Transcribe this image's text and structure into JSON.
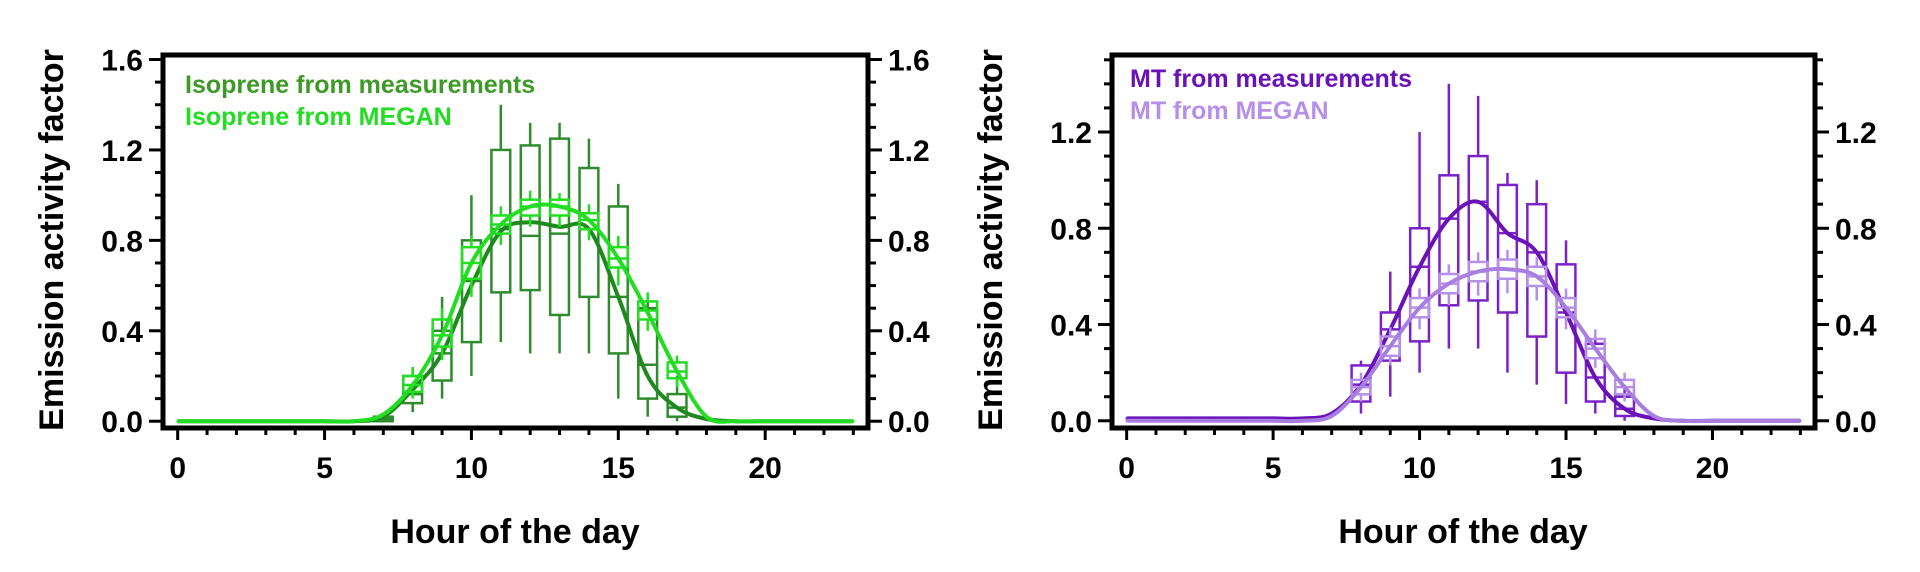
{
  "chart_data": [
    {
      "type": "line",
      "xlabel": "Hour of the day",
      "ylabel": "Emission activity factor",
      "xlim": [
        -0.5,
        23.5
      ],
      "ylim": [
        -0.03,
        1.62
      ],
      "xticks": [
        0,
        5,
        10,
        15,
        20
      ],
      "xtick_labels": [
        "0",
        "5",
        "10",
        "15",
        "20"
      ],
      "yticks": [
        0.0,
        0.4,
        0.8,
        1.2,
        1.6
      ],
      "ytick_labels": [
        "0.0",
        "0.4",
        "0.8",
        "1.2",
        "1.6"
      ],
      "right_axis_mirrored": true,
      "legend_position": "top-left",
      "series": [
        {
          "name": "Isoprene from measurements",
          "color": "#3e9a26",
          "line_color": "#1e8a1e",
          "box_color": "#2e8b2e",
          "x": [
            0,
            1,
            2,
            3,
            4,
            5,
            6,
            7,
            8,
            9,
            10,
            11,
            12,
            13,
            14,
            15,
            16,
            17,
            18,
            19,
            20,
            21,
            22,
            23
          ],
          "values": [
            0.0,
            0.0,
            0.0,
            0.0,
            0.0,
            0.0,
            0.0,
            0.02,
            0.14,
            0.3,
            0.6,
            0.84,
            0.88,
            0.86,
            0.85,
            0.55,
            0.2,
            0.06,
            0.01,
            0.0,
            0.0,
            0.0,
            0.0,
            0.0
          ],
          "boxes": [
            {
              "x": 7,
              "q1": 0.0,
              "med": 0.01,
              "q3": 0.02,
              "lo": 0.0,
              "hi": 0.03
            },
            {
              "x": 8,
              "q1": 0.08,
              "med": 0.12,
              "q3": 0.2,
              "lo": 0.04,
              "hi": 0.24
            },
            {
              "x": 9,
              "q1": 0.18,
              "med": 0.3,
              "q3": 0.4,
              "lo": 0.1,
              "hi": 0.55
            },
            {
              "x": 10,
              "q1": 0.35,
              "med": 0.62,
              "q3": 0.8,
              "lo": 0.2,
              "hi": 1.0
            },
            {
              "x": 11,
              "q1": 0.57,
              "med": 0.85,
              "q3": 1.2,
              "lo": 0.35,
              "hi": 1.4
            },
            {
              "x": 12,
              "q1": 0.58,
              "med": 0.82,
              "q3": 1.22,
              "lo": 0.3,
              "hi": 1.32
            },
            {
              "x": 13,
              "q1": 0.47,
              "med": 0.83,
              "q3": 1.25,
              "lo": 0.3,
              "hi": 1.32
            },
            {
              "x": 14,
              "q1": 0.55,
              "med": 0.85,
              "q3": 1.12,
              "lo": 0.3,
              "hi": 1.25
            },
            {
              "x": 15,
              "q1": 0.3,
              "med": 0.55,
              "q3": 0.95,
              "lo": 0.1,
              "hi": 1.05
            },
            {
              "x": 16,
              "q1": 0.1,
              "med": 0.25,
              "q3": 0.5,
              "lo": 0.02,
              "hi": 0.55
            },
            {
              "x": 17,
              "q1": 0.02,
              "med": 0.06,
              "q3": 0.12,
              "lo": 0.0,
              "hi": 0.2
            }
          ]
        },
        {
          "name": "Isoprene from MEGAN",
          "color": "#22dd22",
          "line_color": "#22dd22",
          "box_color": "#22dd22",
          "x": [
            0,
            1,
            2,
            3,
            4,
            5,
            6,
            7,
            8,
            9,
            10,
            11,
            12,
            13,
            14,
            15,
            16,
            17,
            18,
            19,
            20,
            21,
            22,
            23
          ],
          "values": [
            0.0,
            0.0,
            0.0,
            0.0,
            0.0,
            0.0,
            0.0,
            0.03,
            0.16,
            0.38,
            0.7,
            0.87,
            0.95,
            0.95,
            0.89,
            0.72,
            0.48,
            0.22,
            0.02,
            0.0,
            0.0,
            0.0,
            0.0,
            0.0
          ],
          "boxes": [
            {
              "x": 8,
              "q1": 0.13,
              "med": 0.16,
              "q3": 0.2,
              "lo": 0.1,
              "hi": 0.24
            },
            {
              "x": 9,
              "q1": 0.33,
              "med": 0.38,
              "q3": 0.45,
              "lo": 0.27,
              "hi": 0.5
            },
            {
              "x": 10,
              "q1": 0.63,
              "med": 0.7,
              "q3": 0.77,
              "lo": 0.55,
              "hi": 0.82
            },
            {
              "x": 11,
              "q1": 0.83,
              "med": 0.87,
              "q3": 0.91,
              "lo": 0.78,
              "hi": 0.95
            },
            {
              "x": 12,
              "q1": 0.91,
              "med": 0.95,
              "q3": 0.98,
              "lo": 0.86,
              "hi": 1.02
            },
            {
              "x": 13,
              "q1": 0.91,
              "med": 0.95,
              "q3": 0.98,
              "lo": 0.86,
              "hi": 1.01
            },
            {
              "x": 14,
              "q1": 0.85,
              "med": 0.89,
              "q3": 0.92,
              "lo": 0.8,
              "hi": 0.96
            },
            {
              "x": 15,
              "q1": 0.68,
              "med": 0.72,
              "q3": 0.77,
              "lo": 0.6,
              "hi": 0.82
            },
            {
              "x": 16,
              "q1": 0.45,
              "med": 0.49,
              "q3": 0.53,
              "lo": 0.4,
              "hi": 0.57
            },
            {
              "x": 17,
              "q1": 0.19,
              "med": 0.22,
              "q3": 0.26,
              "lo": 0.15,
              "hi": 0.29
            }
          ]
        }
      ]
    },
    {
      "type": "line",
      "xlabel": "Hour of the day",
      "ylabel": "Emission activity factor",
      "xlim": [
        -0.5,
        23.5
      ],
      "ylim": [
        -0.03,
        1.52
      ],
      "xticks": [
        0,
        5,
        10,
        15,
        20
      ],
      "xtick_labels": [
        "0",
        "5",
        "10",
        "15",
        "20"
      ],
      "yticks": [
        0.0,
        0.4,
        0.8,
        1.2
      ],
      "ytick_labels": [
        "0.0",
        "0.4",
        "0.8",
        "1.2"
      ],
      "right_axis_mirrored": true,
      "legend_position": "top-left",
      "series": [
        {
          "name": "MT from measurements",
          "color": "#6a12b8",
          "line_color": "#6a12b8",
          "box_color": "#7a22c8",
          "x": [
            0,
            1,
            2,
            3,
            4,
            5,
            6,
            7,
            8,
            9,
            10,
            11,
            12,
            13,
            14,
            15,
            16,
            17,
            18,
            19,
            20,
            21,
            22,
            23
          ],
          "values": [
            0.01,
            0.01,
            0.01,
            0.01,
            0.01,
            0.01,
            0.01,
            0.03,
            0.15,
            0.38,
            0.64,
            0.84,
            0.91,
            0.78,
            0.7,
            0.45,
            0.18,
            0.05,
            0.01,
            0.0,
            0.0,
            0.0,
            0.0,
            0.0
          ],
          "boxes": [
            {
              "x": 8,
              "q1": 0.08,
              "med": 0.15,
              "q3": 0.23,
              "lo": 0.03,
              "hi": 0.25
            },
            {
              "x": 9,
              "q1": 0.25,
              "med": 0.38,
              "q3": 0.45,
              "lo": 0.1,
              "hi": 0.62
            },
            {
              "x": 10,
              "q1": 0.33,
              "med": 0.64,
              "q3": 0.8,
              "lo": 0.2,
              "hi": 1.2
            },
            {
              "x": 11,
              "q1": 0.48,
              "med": 0.84,
              "q3": 1.02,
              "lo": 0.3,
              "hi": 1.4
            },
            {
              "x": 12,
              "q1": 0.5,
              "med": 0.91,
              "q3": 1.1,
              "lo": 0.3,
              "hi": 1.35
            },
            {
              "x": 13,
              "q1": 0.45,
              "med": 0.78,
              "q3": 0.98,
              "lo": 0.2,
              "hi": 1.03
            },
            {
              "x": 14,
              "q1": 0.35,
              "med": 0.7,
              "q3": 0.9,
              "lo": 0.15,
              "hi": 1.0
            },
            {
              "x": 15,
              "q1": 0.2,
              "med": 0.45,
              "q3": 0.65,
              "lo": 0.07,
              "hi": 0.75
            },
            {
              "x": 16,
              "q1": 0.08,
              "med": 0.18,
              "q3": 0.32,
              "lo": 0.03,
              "hi": 0.35
            },
            {
              "x": 17,
              "q1": 0.02,
              "med": 0.05,
              "q3": 0.1,
              "lo": 0.0,
              "hi": 0.15
            }
          ]
        },
        {
          "name": "MT from MEGAN",
          "color": "#b690e8",
          "line_color": "#a87ee0",
          "box_color": "#b690e8",
          "x": [
            0,
            1,
            2,
            3,
            4,
            5,
            6,
            7,
            8,
            9,
            10,
            11,
            12,
            13,
            14,
            15,
            16,
            17,
            18,
            19,
            20,
            21,
            22,
            23
          ],
          "values": [
            0.0,
            0.0,
            0.0,
            0.0,
            0.0,
            0.0,
            0.0,
            0.02,
            0.14,
            0.31,
            0.47,
            0.57,
            0.62,
            0.63,
            0.6,
            0.47,
            0.3,
            0.14,
            0.02,
            0.0,
            0.0,
            0.0,
            0.0,
            0.0
          ],
          "boxes": [
            {
              "x": 8,
              "q1": 0.11,
              "med": 0.14,
              "q3": 0.17,
              "lo": 0.08,
              "hi": 0.2
            },
            {
              "x": 9,
              "q1": 0.27,
              "med": 0.31,
              "q3": 0.35,
              "lo": 0.23,
              "hi": 0.39
            },
            {
              "x": 10,
              "q1": 0.43,
              "med": 0.47,
              "q3": 0.51,
              "lo": 0.38,
              "hi": 0.55
            },
            {
              "x": 11,
              "q1": 0.53,
              "med": 0.57,
              "q3": 0.61,
              "lo": 0.48,
              "hi": 0.65
            },
            {
              "x": 12,
              "q1": 0.58,
              "med": 0.62,
              "q3": 0.66,
              "lo": 0.52,
              "hi": 0.7
            },
            {
              "x": 13,
              "q1": 0.59,
              "med": 0.63,
              "q3": 0.67,
              "lo": 0.53,
              "hi": 0.71
            },
            {
              "x": 14,
              "q1": 0.56,
              "med": 0.6,
              "q3": 0.64,
              "lo": 0.5,
              "hi": 0.68
            },
            {
              "x": 15,
              "q1": 0.43,
              "med": 0.47,
              "q3": 0.51,
              "lo": 0.38,
              "hi": 0.55
            },
            {
              "x": 16,
              "q1": 0.26,
              "med": 0.3,
              "q3": 0.34,
              "lo": 0.22,
              "hi": 0.38
            },
            {
              "x": 17,
              "q1": 0.11,
              "med": 0.14,
              "q3": 0.17,
              "lo": 0.08,
              "hi": 0.2
            }
          ]
        }
      ]
    }
  ]
}
